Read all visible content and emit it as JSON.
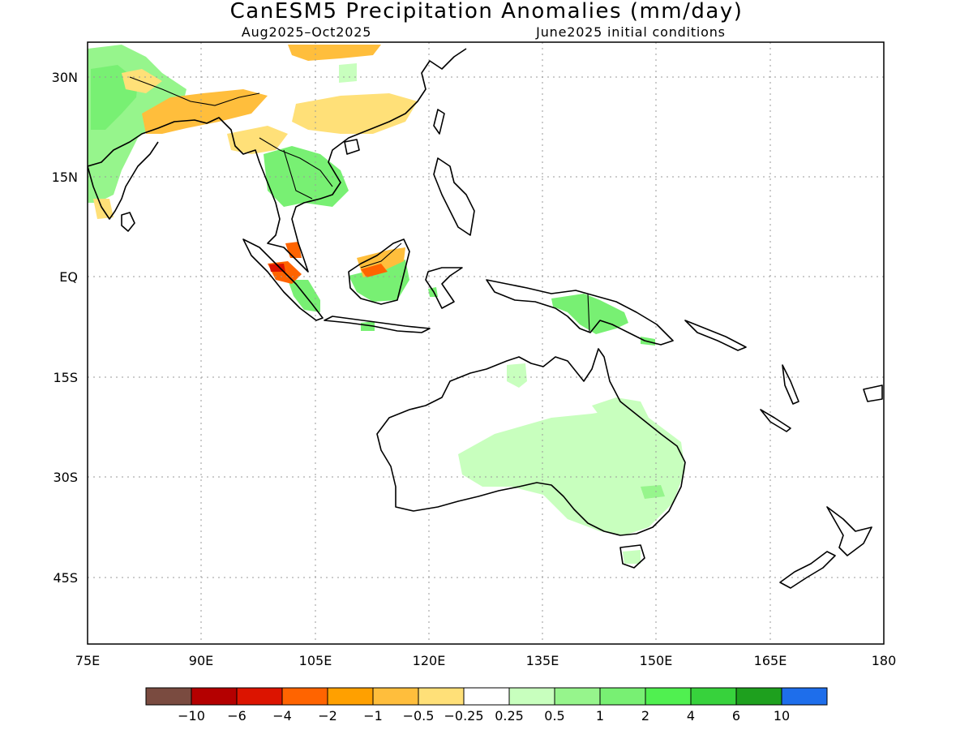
{
  "title": "CanESM5 Precipitation Anomalies (mm/day)",
  "period": "Aug2025–Oct2025",
  "initial_conditions": "June2025 initial conditions",
  "extent": {
    "lon": [
      75,
      180
    ],
    "lat": [
      -53,
      35
    ]
  },
  "lon_ticks": [
    {
      "value": 75,
      "label": "75E"
    },
    {
      "value": 90,
      "label": "90E"
    },
    {
      "value": 105,
      "label": "105E"
    },
    {
      "value": 120,
      "label": "120E"
    },
    {
      "value": 135,
      "label": "135E"
    },
    {
      "value": 150,
      "label": "150E"
    },
    {
      "value": 165,
      "label": "165E"
    },
    {
      "value": 180,
      "label": "180"
    }
  ],
  "lat_ticks": [
    {
      "value": 30,
      "label": "30N"
    },
    {
      "value": 15,
      "label": "15N"
    },
    {
      "value": 0,
      "label": "EQ"
    },
    {
      "value": -15,
      "label": "15S"
    },
    {
      "value": -30,
      "label": "30S"
    },
    {
      "value": -45,
      "label": "45S"
    }
  ],
  "colorbar": {
    "colors": [
      "#7a4b40",
      "#b40000",
      "#dc1400",
      "#ff6400",
      "#ffa000",
      "#ffbe3c",
      "#ffe078",
      "#ffffff",
      "#c8ffbe",
      "#96f58c",
      "#78f073",
      "#50f050",
      "#37d23c",
      "#1ea01e",
      "#1e6eeb"
    ],
    "labels": [
      "−10",
      "−6",
      "−4",
      "−2",
      "−1",
      "−0.5",
      "−0.25",
      "0.25",
      "0.5",
      "1",
      "2",
      "4",
      "6",
      "10"
    ]
  }
}
